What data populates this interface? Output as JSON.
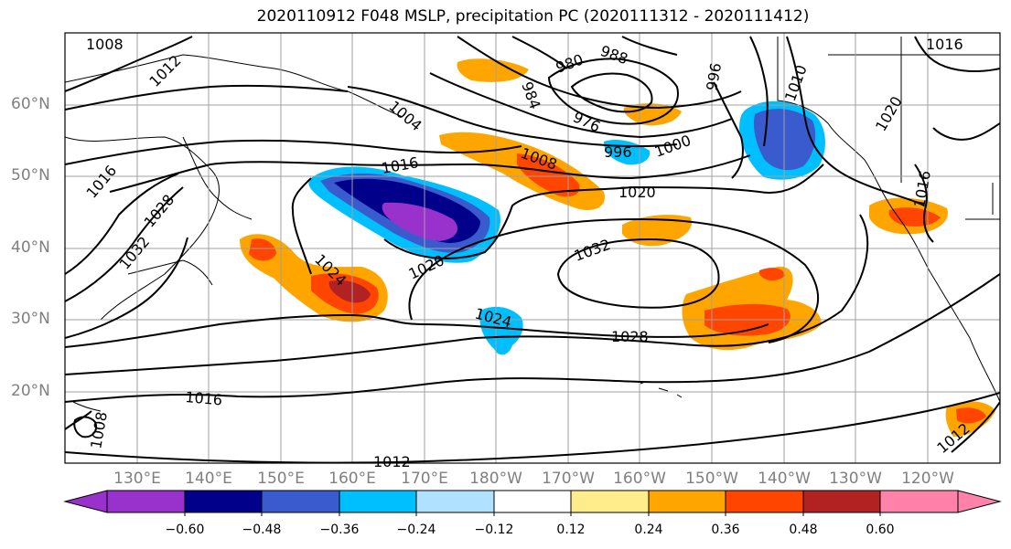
{
  "title": "2020110912 F048 MSLP, precipitation PC (2020111312 - 2020111412)",
  "map": {
    "lat_labels": [
      "60°N",
      "50°N",
      "40°N",
      "30°N",
      "20°N"
    ],
    "lon_labels": [
      "130°E",
      "140°E",
      "150°E",
      "160°E",
      "170°E",
      "180°W",
      "170°W",
      "160°W",
      "150°W",
      "140°W",
      "130°W",
      "120°W"
    ],
    "isobar_labels": [
      "1008",
      "1012",
      "1016",
      "1028",
      "1032",
      "1004",
      "988",
      "980",
      "984",
      "976",
      "996",
      "1000",
      "1008",
      "1016",
      "1020",
      "1020",
      "1024",
      "1032",
      "1024",
      "1028",
      "1016",
      "1012",
      "1008",
      "1012",
      "1016",
      "1020",
      "1016",
      "1010",
      "996"
    ]
  },
  "colorbar": {
    "ticks": [
      "−0.60",
      "−0.48",
      "−0.36",
      "−0.24",
      "−0.12",
      "0.12",
      "0.24",
      "0.36",
      "0.48",
      "0.60"
    ],
    "colors": [
      "#9932cc",
      "#00008b",
      "#3a5bcd",
      "#00bfff",
      "#b0e2ff",
      "#ffffff",
      "#ffec8b",
      "#ffa500",
      "#ff4500",
      "#b22222",
      "#ff82ab"
    ]
  }
}
